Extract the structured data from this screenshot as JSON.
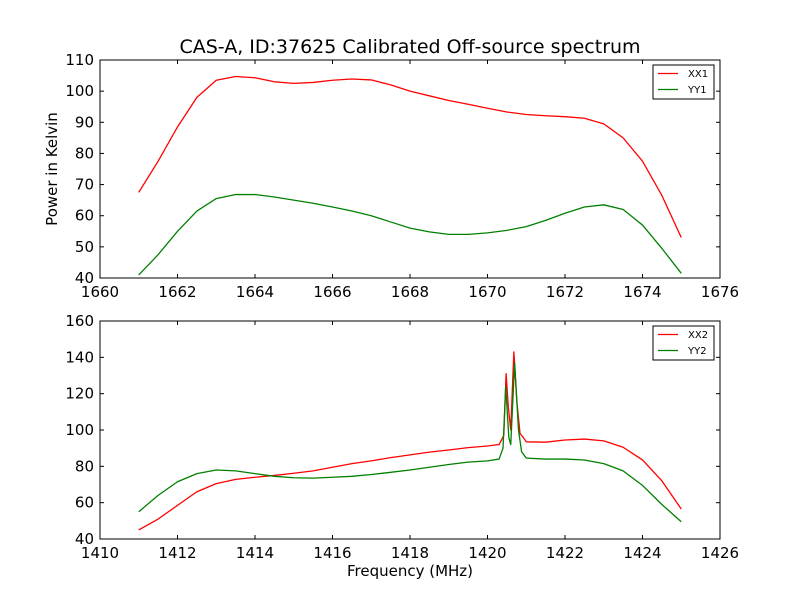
{
  "title": "CAS-A, ID:37625 Calibrated Off-source spectrum",
  "chart_data": [
    {
      "type": "line",
      "xlabel": "",
      "ylabel": "Power in Kelvin",
      "xlim": [
        1660,
        1676
      ],
      "ylim": [
        40,
        110
      ],
      "xticks": [
        "1660",
        "1662",
        "1664",
        "1666",
        "1668",
        "1670",
        "1672",
        "1674",
        "1676"
      ],
      "yticks": [
        "40",
        "50",
        "60",
        "70",
        "80",
        "90",
        "100",
        "110"
      ],
      "legend_position": "top-right",
      "series": [
        {
          "name": "XX1",
          "color": "#ff0000",
          "points": [
            [
              1661.0,
              67.5
            ],
            [
              1661.5,
              77.5
            ],
            [
              1662.0,
              88.5
            ],
            [
              1662.5,
              98.0
            ],
            [
              1663.0,
              103.5
            ],
            [
              1663.5,
              104.7
            ],
            [
              1664.0,
              104.3
            ],
            [
              1664.5,
              103.0
            ],
            [
              1665.0,
              102.5
            ],
            [
              1665.5,
              102.8
            ],
            [
              1666.0,
              103.5
            ],
            [
              1666.5,
              103.9
            ],
            [
              1667.0,
              103.6
            ],
            [
              1667.5,
              102.0
            ],
            [
              1668.0,
              100.0
            ],
            [
              1668.5,
              98.5
            ],
            [
              1669.0,
              97.0
            ],
            [
              1669.5,
              95.8
            ],
            [
              1670.0,
              94.5
            ],
            [
              1670.5,
              93.3
            ],
            [
              1671.0,
              92.5
            ],
            [
              1671.5,
              92.1
            ],
            [
              1672.0,
              91.8
            ],
            [
              1672.5,
              91.3
            ],
            [
              1673.0,
              89.5
            ],
            [
              1673.5,
              85.0
            ],
            [
              1674.0,
              77.5
            ],
            [
              1674.5,
              66.5
            ],
            [
              1675.0,
              53.0
            ]
          ]
        },
        {
          "name": "YY1",
          "color": "#008000",
          "points": [
            [
              1661.0,
              41.0
            ],
            [
              1661.5,
              47.5
            ],
            [
              1662.0,
              55.0
            ],
            [
              1662.5,
              61.5
            ],
            [
              1663.0,
              65.5
            ],
            [
              1663.5,
              66.8
            ],
            [
              1664.0,
              66.8
            ],
            [
              1664.5,
              66.0
            ],
            [
              1665.0,
              65.0
            ],
            [
              1665.5,
              64.0
            ],
            [
              1666.0,
              62.8
            ],
            [
              1666.5,
              61.5
            ],
            [
              1667.0,
              60.0
            ],
            [
              1667.5,
              58.0
            ],
            [
              1668.0,
              56.0
            ],
            [
              1668.5,
              54.8
            ],
            [
              1669.0,
              54.0
            ],
            [
              1669.5,
              54.0
            ],
            [
              1670.0,
              54.5
            ],
            [
              1670.5,
              55.3
            ],
            [
              1671.0,
              56.5
            ],
            [
              1671.5,
              58.5
            ],
            [
              1672.0,
              60.8
            ],
            [
              1672.5,
              62.8
            ],
            [
              1673.0,
              63.5
            ],
            [
              1673.5,
              62.0
            ],
            [
              1674.0,
              57.0
            ],
            [
              1674.5,
              49.5
            ],
            [
              1675.0,
              41.5
            ]
          ]
        }
      ]
    },
    {
      "type": "line",
      "xlabel": "Frequency (MHz)",
      "ylabel": "",
      "xlim": [
        1410,
        1426
      ],
      "ylim": [
        40,
        160
      ],
      "xticks": [
        "1410",
        "1412",
        "1414",
        "1416",
        "1418",
        "1420",
        "1422",
        "1424",
        "1426"
      ],
      "yticks": [
        "40",
        "60",
        "80",
        "100",
        "120",
        "140",
        "160"
      ],
      "legend_position": "top-right",
      "series": [
        {
          "name": "XX2",
          "color": "#ff0000",
          "points": [
            [
              1411.0,
              45.0
            ],
            [
              1411.5,
              51.0
            ],
            [
              1412.0,
              58.5
            ],
            [
              1412.5,
              66.0
            ],
            [
              1413.0,
              70.5
            ],
            [
              1413.5,
              72.8
            ],
            [
              1414.0,
              74.0
            ],
            [
              1414.5,
              75.0
            ],
            [
              1415.0,
              76.2
            ],
            [
              1415.5,
              77.5
            ],
            [
              1416.0,
              79.5
            ],
            [
              1416.5,
              81.5
            ],
            [
              1417.0,
              83.0
            ],
            [
              1417.5,
              84.8
            ],
            [
              1418.0,
              86.3
            ],
            [
              1418.5,
              87.8
            ],
            [
              1419.0,
              89.0
            ],
            [
              1419.5,
              90.3
            ],
            [
              1420.0,
              91.2
            ],
            [
              1420.3,
              92.0
            ],
            [
              1420.42,
              97.0
            ],
            [
              1420.48,
              131.0
            ],
            [
              1420.54,
              112.0
            ],
            [
              1420.6,
              100.0
            ],
            [
              1420.68,
              143.0
            ],
            [
              1420.76,
              115.0
            ],
            [
              1420.84,
              98.0
            ],
            [
              1420.92,
              96.0
            ],
            [
              1421.0,
              93.5
            ],
            [
              1421.5,
              93.3
            ],
            [
              1422.0,
              94.5
            ],
            [
              1422.5,
              95.0
            ],
            [
              1423.0,
              94.0
            ],
            [
              1423.5,
              90.5
            ],
            [
              1424.0,
              83.5
            ],
            [
              1424.5,
              72.0
            ],
            [
              1425.0,
              56.5
            ]
          ]
        },
        {
          "name": "YY2",
          "color": "#008000",
          "points": [
            [
              1411.0,
              55.0
            ],
            [
              1411.5,
              64.0
            ],
            [
              1412.0,
              71.5
            ],
            [
              1412.5,
              76.0
            ],
            [
              1413.0,
              78.0
            ],
            [
              1413.5,
              77.5
            ],
            [
              1414.0,
              76.0
            ],
            [
              1414.5,
              74.5
            ],
            [
              1415.0,
              73.7
            ],
            [
              1415.5,
              73.5
            ],
            [
              1416.0,
              74.0
            ],
            [
              1416.5,
              74.5
            ],
            [
              1417.0,
              75.5
            ],
            [
              1417.5,
              76.7
            ],
            [
              1418.0,
              78.0
            ],
            [
              1418.5,
              79.5
            ],
            [
              1419.0,
              81.0
            ],
            [
              1419.5,
              82.3
            ],
            [
              1420.0,
              83.0
            ],
            [
              1420.3,
              84.0
            ],
            [
              1420.4,
              90.0
            ],
            [
              1420.47,
              124.0
            ],
            [
              1420.55,
              96.0
            ],
            [
              1420.6,
              92.0
            ],
            [
              1420.7,
              137.0
            ],
            [
              1420.8,
              100.0
            ],
            [
              1420.88,
              88.0
            ],
            [
              1421.0,
              84.5
            ],
            [
              1421.5,
              84.0
            ],
            [
              1422.0,
              84.0
            ],
            [
              1422.5,
              83.5
            ],
            [
              1423.0,
              81.5
            ],
            [
              1423.5,
              77.5
            ],
            [
              1424.0,
              69.5
            ],
            [
              1424.5,
              59.0
            ],
            [
              1425.0,
              49.5
            ]
          ]
        }
      ]
    }
  ]
}
